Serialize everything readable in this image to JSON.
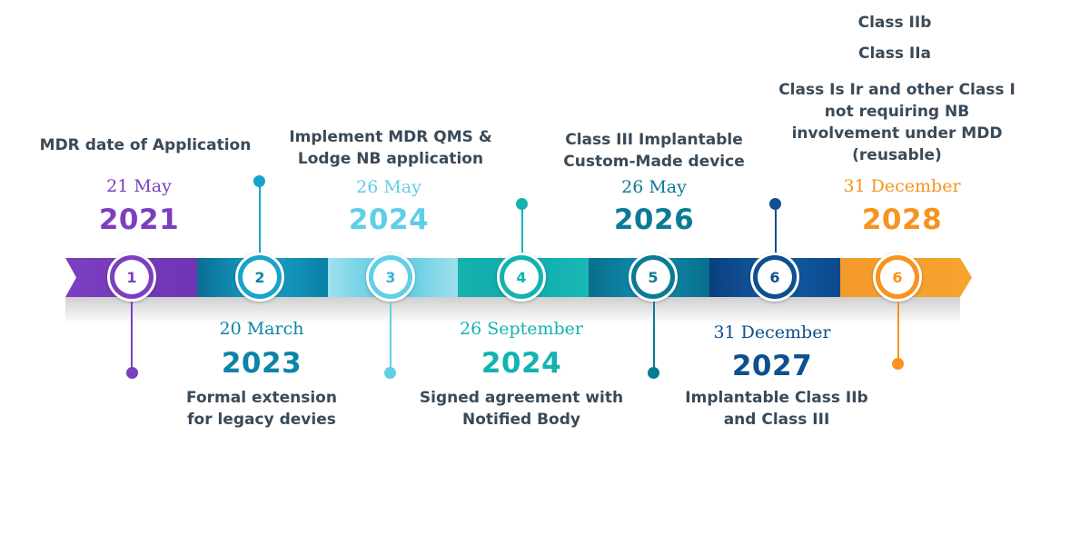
{
  "colors": {
    "purple": "#7b3fbf",
    "teal": "#0a84a8",
    "light_cyan": "#5fcfe6",
    "aqua": "#12b3b0",
    "dark_teal": "#0a7b94",
    "navy": "#0d4f8f",
    "orange": "#f7931e"
  },
  "milestones": [
    {
      "number": "1",
      "date": "21 May",
      "year": "2021",
      "description": "MDR date of Application"
    },
    {
      "number": "2",
      "date": "20 March",
      "year": "2023",
      "description": "Formal extension\nfor legacy devies"
    },
    {
      "number": "3",
      "date": "26 May",
      "year": "2024",
      "description": "Implement MDR QMS &\nLodge NB application"
    },
    {
      "number": "4",
      "date": "26 September",
      "year": "2024",
      "description": "Signed agreement with\nNotified Body"
    },
    {
      "number": "5",
      "date": "26 May",
      "year": "2026",
      "description": "Class III Implantable\nCustom-Made device"
    },
    {
      "number": "6",
      "date": "31 December",
      "year": "2027",
      "description": "Implantable Class IIb\nand Class III"
    },
    {
      "number": "6",
      "date": "31 December",
      "year": "2028",
      "description": "Class Is Ir and other Class I\nnot requiring NB\ninvolvement under MDD\n(reusable)"
    }
  ],
  "extra_labels": [
    "Class IIb",
    "Class IIa"
  ]
}
